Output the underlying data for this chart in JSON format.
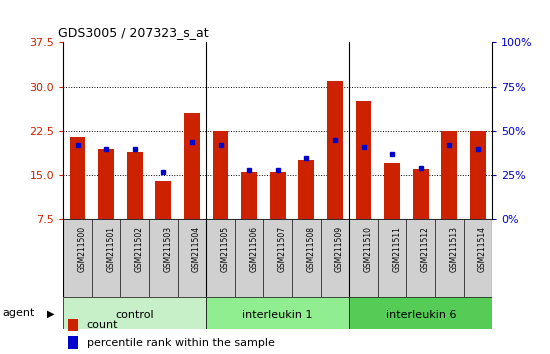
{
  "title": "GDS3005 / 207323_s_at",
  "samples": [
    "GSM211500",
    "GSM211501",
    "GSM211502",
    "GSM211503",
    "GSM211504",
    "GSM211505",
    "GSM211506",
    "GSM211507",
    "GSM211508",
    "GSM211509",
    "GSM211510",
    "GSM211511",
    "GSM211512",
    "GSM211513",
    "GSM211514"
  ],
  "count_values": [
    21.5,
    19.5,
    19.0,
    14.0,
    25.5,
    22.5,
    15.5,
    15.5,
    17.5,
    31.0,
    27.5,
    17.0,
    16.0,
    22.5,
    22.5
  ],
  "percentile_values": [
    42,
    40,
    40,
    27,
    44,
    42,
    28,
    28,
    35,
    45,
    41,
    37,
    29,
    42,
    40
  ],
  "groups": [
    {
      "label": "control",
      "start": 0,
      "end": 5
    },
    {
      "label": "interleukin 1",
      "start": 5,
      "end": 10
    },
    {
      "label": "interleukin 6",
      "start": 10,
      "end": 15
    }
  ],
  "group_colors": [
    "#c8f0c8",
    "#90ee90",
    "#55cc55"
  ],
  "ylim_left": [
    7.5,
    37.5
  ],
  "yticks_left": [
    7.5,
    15.0,
    22.5,
    30.0,
    37.5
  ],
  "ylim_right": [
    0,
    100
  ],
  "yticks_right": [
    0,
    25,
    50,
    75,
    100
  ],
  "bar_color": "#cc2200",
  "dot_color": "#0000cc",
  "bar_width": 0.55,
  "tick_color_left": "#cc2200",
  "tick_color_right": "#0000cc",
  "agent_label": "agent",
  "legend_count": "count",
  "legend_percentile": "percentile rank within the sample"
}
